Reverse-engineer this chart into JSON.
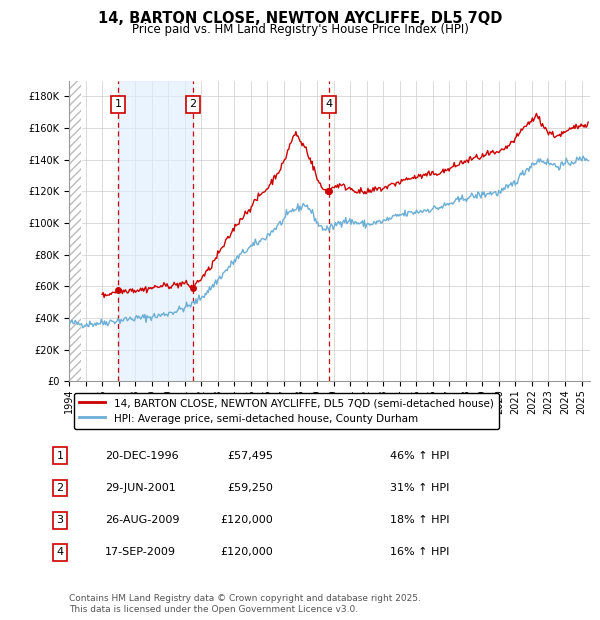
{
  "title1": "14, BARTON CLOSE, NEWTON AYCLIFFE, DL5 7QD",
  "title2": "Price paid vs. HM Land Registry's House Price Index (HPI)",
  "legend_label_red": "14, BARTON CLOSE, NEWTON AYCLIFFE, DL5 7QD (semi-detached house)",
  "legend_label_blue": "HPI: Average price, semi-detached house, County Durham",
  "footer": "Contains HM Land Registry data © Crown copyright and database right 2025.\nThis data is licensed under the Open Government Licence v3.0.",
  "sales": [
    {
      "num": 1,
      "date_label": "20-DEC-1996",
      "date_x": 1996.97,
      "price": 57495,
      "pct": "46% ↑ HPI"
    },
    {
      "num": 2,
      "date_label": "29-JUN-2001",
      "date_x": 2001.49,
      "price": 59250,
      "pct": "31% ↑ HPI"
    },
    {
      "num": 3,
      "date_label": "26-AUG-2009",
      "date_x": 2009.65,
      "price": 120000,
      "pct": "18% ↑ HPI"
    },
    {
      "num": 4,
      "date_label": "17-SEP-2009",
      "date_x": 2009.71,
      "price": 120000,
      "pct": "16% ↑ HPI"
    }
  ],
  "ylim": [
    0,
    190000
  ],
  "xlim_start": 1994.0,
  "xlim_end": 2025.5,
  "background_color": "#ffffff",
  "hpi_color": "#6baed6",
  "price_color": "#cc0000",
  "vline_color": "#cc0000",
  "shade_color": "#ddeeff",
  "hatch_color": "#bbbbbb",
  "hpi_anchors": [
    [
      1994.0,
      37000
    ],
    [
      1994.5,
      36500
    ],
    [
      1995.0,
      36000
    ],
    [
      1995.5,
      36500
    ],
    [
      1996.0,
      37000
    ],
    [
      1996.5,
      37800
    ],
    [
      1997.0,
      38500
    ],
    [
      1997.5,
      39200
    ],
    [
      1998.0,
      39800
    ],
    [
      1998.5,
      40200
    ],
    [
      1999.0,
      40800
    ],
    [
      1999.5,
      41500
    ],
    [
      2000.0,
      43000
    ],
    [
      2000.5,
      44500
    ],
    [
      2001.0,
      46500
    ],
    [
      2001.5,
      49000
    ],
    [
      2002.0,
      53000
    ],
    [
      2002.5,
      58000
    ],
    [
      2003.0,
      64000
    ],
    [
      2003.5,
      70000
    ],
    [
      2004.0,
      76000
    ],
    [
      2004.5,
      81000
    ],
    [
      2005.0,
      85000
    ],
    [
      2005.5,
      88000
    ],
    [
      2006.0,
      92000
    ],
    [
      2006.5,
      97000
    ],
    [
      2007.0,
      102000
    ],
    [
      2007.5,
      108000
    ],
    [
      2008.0,
      110000
    ],
    [
      2008.3,
      112000
    ],
    [
      2008.6,
      108000
    ],
    [
      2008.9,
      103000
    ],
    [
      2009.0,
      100000
    ],
    [
      2009.3,
      97000
    ],
    [
      2009.6,
      96000
    ],
    [
      2009.9,
      97000
    ],
    [
      2010.0,
      98000
    ],
    [
      2010.3,
      100000
    ],
    [
      2010.6,
      102000
    ],
    [
      2010.9,
      101000
    ],
    [
      2011.0,
      101000
    ],
    [
      2011.5,
      100000
    ],
    [
      2012.0,
      99000
    ],
    [
      2012.5,
      100000
    ],
    [
      2013.0,
      101000
    ],
    [
      2013.5,
      103000
    ],
    [
      2014.0,
      105000
    ],
    [
      2014.5,
      106000
    ],
    [
      2015.0,
      107000
    ],
    [
      2015.5,
      108000
    ],
    [
      2016.0,
      109000
    ],
    [
      2016.5,
      110000
    ],
    [
      2017.0,
      112000
    ],
    [
      2017.5,
      114000
    ],
    [
      2018.0,
      116000
    ],
    [
      2018.5,
      117000
    ],
    [
      2019.0,
      118000
    ],
    [
      2019.5,
      119000
    ],
    [
      2020.0,
      119000
    ],
    [
      2020.5,
      122000
    ],
    [
      2021.0,
      126000
    ],
    [
      2021.5,
      132000
    ],
    [
      2022.0,
      137000
    ],
    [
      2022.5,
      140000
    ],
    [
      2023.0,
      138000
    ],
    [
      2023.5,
      136000
    ],
    [
      2024.0,
      137000
    ],
    [
      2024.5,
      139000
    ],
    [
      2025.3,
      141000
    ]
  ],
  "price_anchors": [
    [
      1996.0,
      54000
    ],
    [
      1996.5,
      55500
    ],
    [
      1996.97,
      57495
    ],
    [
      1997.3,
      57000
    ],
    [
      1997.7,
      58000
    ],
    [
      1998.0,
      57500
    ],
    [
      1998.5,
      58000
    ],
    [
      1999.0,
      59000
    ],
    [
      1999.5,
      60000
    ],
    [
      2000.0,
      60500
    ],
    [
      2000.5,
      61000
    ],
    [
      2001.0,
      62000
    ],
    [
      2001.49,
      59250
    ],
    [
      2001.8,
      63000
    ],
    [
      2002.0,
      65000
    ],
    [
      2002.5,
      71000
    ],
    [
      2003.0,
      80000
    ],
    [
      2003.5,
      88000
    ],
    [
      2004.0,
      97000
    ],
    [
      2004.5,
      104000
    ],
    [
      2005.0,
      110000
    ],
    [
      2005.5,
      117000
    ],
    [
      2006.0,
      122000
    ],
    [
      2006.5,
      130000
    ],
    [
      2007.0,
      138000
    ],
    [
      2007.3,
      148000
    ],
    [
      2007.6,
      155000
    ],
    [
      2007.75,
      157000
    ],
    [
      2007.9,
      153000
    ],
    [
      2008.1,
      150000
    ],
    [
      2008.3,
      148000
    ],
    [
      2008.6,
      140000
    ],
    [
      2008.9,
      132000
    ],
    [
      2009.0,
      128000
    ],
    [
      2009.3,
      122000
    ],
    [
      2009.65,
      120000
    ],
    [
      2009.71,
      120000
    ],
    [
      2009.9,
      122000
    ],
    [
      2010.0,
      123000
    ],
    [
      2010.3,
      124000
    ],
    [
      2010.6,
      123000
    ],
    [
      2011.0,
      122000
    ],
    [
      2011.5,
      120000
    ],
    [
      2012.0,
      119000
    ],
    [
      2012.5,
      121000
    ],
    [
      2013.0,
      122000
    ],
    [
      2013.5,
      124000
    ],
    [
      2014.0,
      126000
    ],
    [
      2014.5,
      128000
    ],
    [
      2015.0,
      129000
    ],
    [
      2015.5,
      130000
    ],
    [
      2016.0,
      131000
    ],
    [
      2016.5,
      132000
    ],
    [
      2017.0,
      134000
    ],
    [
      2017.5,
      137000
    ],
    [
      2018.0,
      139000
    ],
    [
      2018.5,
      141000
    ],
    [
      2019.0,
      142000
    ],
    [
      2019.5,
      144000
    ],
    [
      2020.0,
      144000
    ],
    [
      2020.5,
      148000
    ],
    [
      2021.0,
      153000
    ],
    [
      2021.5,
      160000
    ],
    [
      2022.0,
      165000
    ],
    [
      2022.3,
      168000
    ],
    [
      2022.6,
      163000
    ],
    [
      2023.0,
      157000
    ],
    [
      2023.5,
      155000
    ],
    [
      2024.0,
      157000
    ],
    [
      2024.5,
      160000
    ],
    [
      2025.3,
      163000
    ]
  ]
}
